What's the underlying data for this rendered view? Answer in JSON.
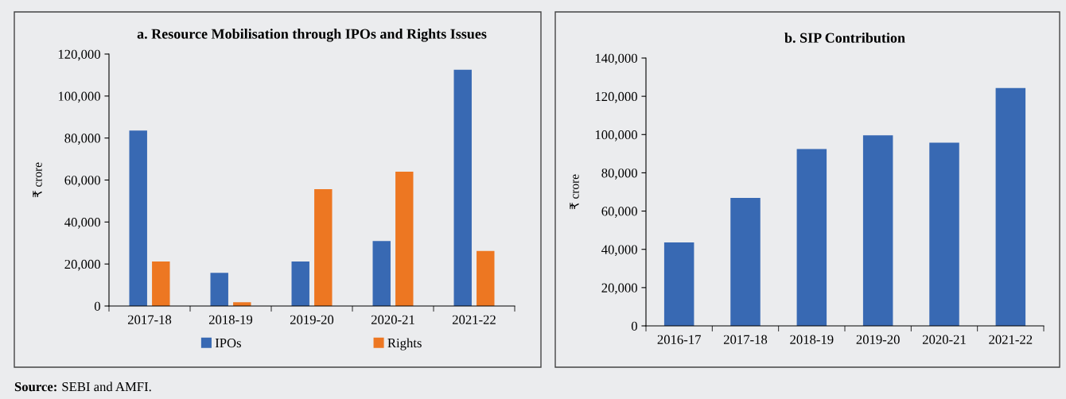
{
  "chart_data": [
    {
      "type": "bar",
      "title": "a. Resource Mobilisation through IPOs and Rights Issues",
      "ylabel": "₹ crore",
      "categories": [
        "2017-18",
        "2018-19",
        "2019-20",
        "2020-21",
        "2021-22"
      ],
      "series": [
        {
          "name": "IPOs",
          "color": "#3869b3",
          "values": [
            83600,
            15800,
            21200,
            30900,
            112500
          ]
        },
        {
          "name": "Rights",
          "color": "#ed7722",
          "values": [
            21200,
            1800,
            55600,
            64000,
            26200
          ]
        }
      ],
      "ylim": [
        0,
        120000
      ],
      "yticks": [
        {
          "value": 0,
          "label": "0"
        },
        {
          "value": 20000,
          "label": "20,000"
        },
        {
          "value": 40000,
          "label": "40,000"
        },
        {
          "value": 60000,
          "label": "60,000"
        },
        {
          "value": 80000,
          "label": "80,000"
        },
        {
          "value": 100000,
          "label": "100,000"
        },
        {
          "value": 120000,
          "label": "120,000"
        }
      ],
      "grid": false,
      "legend": "bottom",
      "annotations": [
        "Source: SEBI and AMFI."
      ]
    },
    {
      "type": "bar",
      "title": "b. SIP Contribution",
      "ylabel": "₹ crore",
      "categories": [
        "2016-17",
        "2017-18",
        "2018-19",
        "2019-20",
        "2020-21",
        "2021-22"
      ],
      "series": [
        {
          "color": "#3869b3",
          "values": [
            43600,
            66900,
            92400,
            99600,
            95800,
            124300
          ]
        }
      ],
      "ylim": [
        0,
        140000
      ],
      "yticks": [
        {
          "value": 0,
          "label": "0"
        },
        {
          "value": 20000,
          "label": "20,000"
        },
        {
          "value": 40000,
          "label": "40,000"
        },
        {
          "value": 60000,
          "label": "60,000"
        },
        {
          "value": 80000,
          "label": "80,000"
        },
        {
          "value": 100000,
          "label": "100,000"
        },
        {
          "value": 120000,
          "label": "120,000"
        },
        {
          "value": 140000,
          "label": "140,000"
        }
      ],
      "grid": false,
      "legend": false
    }
  ]
}
